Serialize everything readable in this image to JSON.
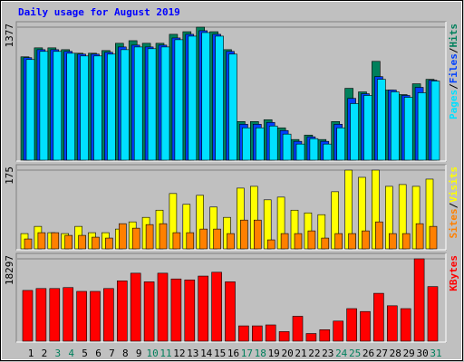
{
  "chart_data": [
    {
      "type": "bar",
      "title": "Daily usage for August 2019",
      "legend_separator": "/",
      "ylim": [
        0,
        1377
      ],
      "yticks": [
        1377
      ],
      "series": [
        {
          "name": "Hits",
          "color": "#00805c",
          "values": [
            1070,
            1163,
            1163,
            1144,
            1107,
            1107,
            1135,
            1210,
            1237,
            1210,
            1210,
            1303,
            1330,
            1377,
            1330,
            1144,
            400,
            400,
            419,
            335,
            214,
            260,
            214,
            400,
            744,
            707,
            1023,
            726,
            679,
            791,
            837
          ]
        },
        {
          "name": "Files",
          "color": "#0040ff",
          "values": [
            1061,
            1144,
            1144,
            1126,
            1098,
            1098,
            1117,
            1172,
            1191,
            1172,
            1191,
            1265,
            1303,
            1340,
            1303,
            1126,
            372,
            372,
            391,
            307,
            195,
            242,
            195,
            372,
            640,
            688,
            865,
            726,
            670,
            754,
            828
          ]
        },
        {
          "name": "Pages",
          "color": "#00e0ff",
          "values": [
            1042,
            1126,
            1126,
            1107,
            1079,
            1079,
            1098,
            1144,
            1172,
            1154,
            1172,
            1247,
            1284,
            1321,
            1284,
            1098,
            335,
            335,
            354,
            270,
            167,
            223,
            167,
            335,
            586,
            670,
            837,
            707,
            651,
            698,
            819
          ]
        }
      ]
    },
    {
      "type": "bar",
      "legend_separator": "/",
      "ylim": [
        0,
        175
      ],
      "yticks": [
        175
      ],
      "series": [
        {
          "name": "Visits",
          "color": "#ffff00",
          "values": [
            34,
            50,
            36,
            34,
            50,
            36,
            36,
            44,
            60,
            70,
            86,
            123,
            99,
            119,
            93,
            70,
            135,
            139,
            109,
            115,
            86,
            80,
            76,
            127,
            175,
            159,
            175,
            139,
            143,
            139,
            155
          ]
        },
        {
          "name": "Sites",
          "color": "#ff8000",
          "values": [
            22,
            36,
            36,
            30,
            30,
            26,
            24,
            56,
            46,
            54,
            56,
            36,
            36,
            44,
            44,
            34,
            64,
            64,
            20,
            34,
            34,
            40,
            24,
            34,
            34,
            40,
            60,
            34,
            34,
            56,
            50
          ]
        }
      ]
    },
    {
      "type": "bar",
      "ylim": [
        0,
        18297
      ],
      "yticks": [
        18297
      ],
      "series": [
        {
          "name": "KBytes",
          "color": "#ff0000",
          "values": [
            11276,
            11700,
            11700,
            11913,
            11063,
            11063,
            11700,
            13403,
            15105,
            13190,
            15105,
            13829,
            13616,
            14467,
            15318,
            13190,
            3404,
            3404,
            3617,
            2128,
            5532,
            1702,
            2553,
            4468,
            7234,
            6595,
            10637,
            7872,
            7234,
            18297,
            12126
          ]
        }
      ],
      "categories": [
        "1",
        "2",
        "3",
        "4",
        "5",
        "6",
        "7",
        "8",
        "9",
        "10",
        "11",
        "12",
        "13",
        "14",
        "15",
        "16",
        "17",
        "18",
        "19",
        "20",
        "21",
        "22",
        "23",
        "24",
        "25",
        "26",
        "27",
        "28",
        "29",
        "30",
        "31"
      ],
      "category_colors": [
        "#000000",
        "#000000",
        "#00805c",
        "#00805c",
        "#000000",
        "#000000",
        "#000000",
        "#000000",
        "#000000",
        "#00805c",
        "#00805c",
        "#000000",
        "#000000",
        "#000000",
        "#000000",
        "#000000",
        "#00805c",
        "#00805c",
        "#000000",
        "#000000",
        "#000000",
        "#000000",
        "#000000",
        "#00805c",
        "#00805c",
        "#000000",
        "#000000",
        "#000000",
        "#000000",
        "#000000",
        "#00805c"
      ]
    }
  ]
}
